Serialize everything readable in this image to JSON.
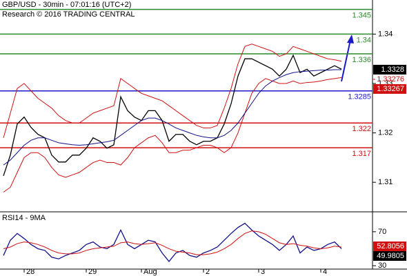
{
  "chart_data": [
    {
      "type": "line",
      "title": "GBP/USD - 30min - 07:01:16 (UTC+2)",
      "subtitle": "Research © 2016 TRADING CENTRAL",
      "ylim": [
        1.3043,
        1.3469
      ],
      "yticks": [
        1.31,
        1.32,
        1.33,
        1.34
      ],
      "levels": [
        1.345,
        1.34,
        1.336,
        1.3285,
        1.322,
        1.317
      ],
      "level_colors": [
        "#2a8a2a",
        "#2a8a2a",
        "#2a8a2a",
        "#1a1ac8",
        "#d01010",
        "#d01010"
      ],
      "markers": [
        {
          "value": 1.3328,
          "color": "#000000",
          "boxed": true
        },
        {
          "value": 1.33276,
          "color": "#d01010",
          "boxed": false
        },
        {
          "value": 1.33267,
          "color": "#d01010",
          "boxed": true
        }
      ],
      "series": [
        {
          "color": "#000000",
          "values": [
            1.3113,
            1.3155,
            1.3218,
            1.3232,
            1.3211,
            1.3197,
            1.319,
            1.3155,
            1.3141,
            1.3141,
            1.3155,
            1.3155,
            1.3169,
            1.319,
            1.3183,
            1.3169,
            1.3176,
            1.3273,
            1.3245,
            1.3232,
            1.3225,
            1.3245,
            1.3245,
            1.3225,
            1.3183,
            1.3197,
            1.3197,
            1.3183,
            1.3176,
            1.3183,
            1.3183,
            1.319,
            1.3218,
            1.3259,
            1.3315,
            1.335,
            1.335,
            1.3343,
            1.3336,
            1.3329,
            1.3315,
            1.3329,
            1.3357,
            1.3322,
            1.3329,
            1.3315,
            1.3322,
            1.3329,
            1.3336,
            1.3329
          ]
        },
        {
          "color": "#d01010",
          "values": [
            1.319,
            1.324,
            1.329,
            1.33,
            1.3285,
            1.327,
            1.326,
            1.325,
            1.3235,
            1.3225,
            1.322,
            1.322,
            1.323,
            1.324,
            1.3245,
            1.325,
            1.3255,
            1.331,
            1.33,
            1.329,
            1.328,
            1.3275,
            1.327,
            1.3265,
            1.3255,
            1.3245,
            1.3235,
            1.3225,
            1.3215,
            1.321,
            1.321,
            1.3215,
            1.325,
            1.329,
            1.334,
            1.3375,
            1.338,
            1.3375,
            1.337,
            1.3365,
            1.3355,
            1.336,
            1.3375,
            1.337,
            1.3365,
            1.336,
            1.3355,
            1.335,
            1.3348,
            1.3345
          ]
        },
        {
          "color": "#d01010",
          "values": [
            1.308,
            1.309,
            1.312,
            1.315,
            1.316,
            1.316,
            1.315,
            1.313,
            1.3115,
            1.311,
            1.3115,
            1.312,
            1.313,
            1.314,
            1.3145,
            1.314,
            1.314,
            1.3135,
            1.315,
            1.317,
            1.318,
            1.319,
            1.3195,
            1.318,
            1.316,
            1.316,
            1.3165,
            1.3165,
            1.317,
            1.3175,
            1.3175,
            1.317,
            1.316,
            1.317,
            1.32,
            1.324,
            1.328,
            1.33,
            1.331,
            1.3305,
            1.33,
            1.33,
            1.3305,
            1.33,
            1.3302,
            1.3303,
            1.3305,
            1.3308,
            1.331,
            1.3312
          ]
        },
        {
          "color": "#10108a",
          "values": [
            1.3135,
            1.3145,
            1.316,
            1.3175,
            1.3185,
            1.319,
            1.319,
            1.3185,
            1.318,
            1.3178,
            1.3176,
            1.3175,
            1.3176,
            1.3178,
            1.318,
            1.3182,
            1.3185,
            1.3195,
            1.3205,
            1.3215,
            1.3225,
            1.323,
            1.323,
            1.3225,
            1.3218,
            1.321,
            1.3205,
            1.32,
            1.3195,
            1.3192,
            1.319,
            1.319,
            1.3195,
            1.3205,
            1.322,
            1.324,
            1.326,
            1.328,
            1.3295,
            1.3305,
            1.3312,
            1.3318,
            1.3322,
            1.3324,
            1.3325,
            1.3326,
            1.3327,
            1.3327,
            1.3328,
            1.3328
          ]
        }
      ]
    },
    {
      "type": "line",
      "title": "RSI14 - 9MA",
      "ylim": [
        26,
        91
      ],
      "yticks": [
        30,
        70
      ],
      "categories": [
        null,
        null,
        null,
        "28",
        null,
        null,
        null,
        null,
        null,
        null,
        null,
        null,
        "29",
        null,
        null,
        null,
        null,
        null,
        null,
        null,
        "Aug",
        null,
        null,
        null,
        null,
        null,
        null,
        null,
        null,
        "2",
        null,
        null,
        null,
        null,
        null,
        null,
        null,
        "3",
        null,
        null,
        null,
        null,
        null,
        null,
        null,
        null,
        "4",
        null,
        null,
        null
      ],
      "markers": [
        {
          "value": 52.8056,
          "color": "#d01010",
          "boxed": true
        },
        {
          "value": 49.9805,
          "color": "#000000",
          "boxed": true
        }
      ],
      "series": [
        {
          "color": "#10108a",
          "values": [
            42,
            60,
            68,
            62,
            55,
            50,
            48,
            40,
            38,
            42,
            45,
            48,
            55,
            58,
            52,
            50,
            55,
            72,
            55,
            50,
            55,
            60,
            58,
            45,
            35,
            45,
            48,
            42,
            40,
            45,
            48,
            52,
            60,
            68,
            75,
            80,
            72,
            65,
            60,
            55,
            48,
            55,
            65,
            45,
            52,
            48,
            50,
            55,
            58,
            50
          ]
        },
        {
          "color": "#d01010",
          "values": [
            50,
            52,
            56,
            58,
            57,
            55,
            52,
            48,
            45,
            44,
            44,
            45,
            48,
            50,
            51,
            52,
            53,
            57,
            58,
            56,
            55,
            56,
            57,
            54,
            50,
            47,
            46,
            45,
            43,
            43,
            44,
            46,
            50,
            55,
            62,
            68,
            71,
            70,
            67,
            62,
            57,
            55,
            56,
            54,
            53,
            51,
            50,
            51,
            53,
            52
          ]
        }
      ]
    }
  ]
}
